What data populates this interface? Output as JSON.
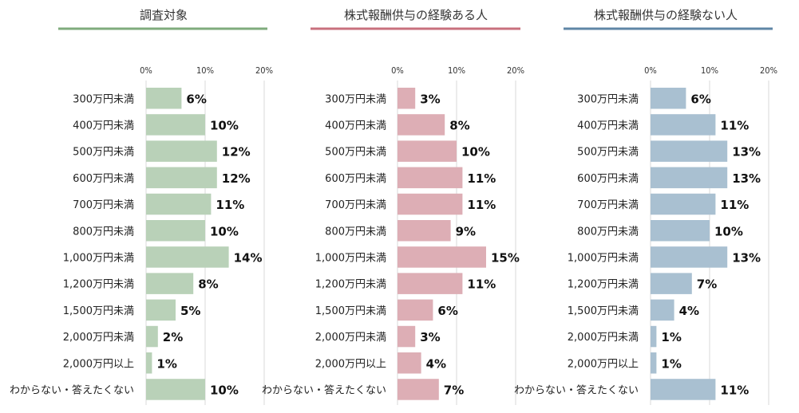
{
  "chart_data": [
    {
      "type": "bar",
      "orientation": "horizontal",
      "title": "調査対象",
      "color": "#b9d1b8",
      "underline_color": "#7fab7c",
      "categories": [
        "300万円未満",
        "400万円未満",
        "500万円未満",
        "600万円未満",
        "700万円未満",
        "800万円未満",
        "1,000万円未満",
        "1,200万円未満",
        "1,500万円未満",
        "2,000万円未満",
        "2,000万円以上",
        "わからない・答えたくない"
      ],
      "values": [
        6,
        10,
        12,
        12,
        11,
        10,
        14,
        8,
        5,
        2,
        1,
        10
      ],
      "value_labels": [
        "6%",
        "10%",
        "12%",
        "12%",
        "11%",
        "10%",
        "14%",
        "8%",
        "5%",
        "2%",
        "1%",
        "10%"
      ],
      "xlim": [
        0,
        20
      ],
      "xticks": [
        "0%",
        "10%",
        "20%"
      ],
      "grid": true
    },
    {
      "type": "bar",
      "orientation": "horizontal",
      "title": "株式報酬供与の経験ある人",
      "color": "#ddaeb5",
      "underline_color": "#c8707d",
      "categories": [
        "300万円未満",
        "400万円未満",
        "500万円未満",
        "600万円未満",
        "700万円未満",
        "800万円未満",
        "1,000万円未満",
        "1,200万円未満",
        "1,500万円未満",
        "2,000万円未満",
        "2,000万円以上",
        "わからない・答えたくない"
      ],
      "values": [
        3,
        8,
        10,
        11,
        11,
        9,
        15,
        11,
        6,
        3,
        4,
        7
      ],
      "value_labels": [
        "3%",
        "8%",
        "10%",
        "11%",
        "11%",
        "9%",
        "15%",
        "11%",
        "6%",
        "3%",
        "4%",
        "7%"
      ],
      "xlim": [
        0,
        20
      ],
      "xticks": [
        "0%",
        "10%",
        "20%"
      ],
      "grid": true
    },
    {
      "type": "bar",
      "orientation": "horizontal",
      "title": "株式報酬供与の経験ない人",
      "color": "#a9c0d1",
      "underline_color": "#5f86a6",
      "categories": [
        "300万円未満",
        "400万円未満",
        "500万円未満",
        "600万円未満",
        "700万円未満",
        "800万円未満",
        "1,000万円未満",
        "1,200万円未満",
        "1,500万円未満",
        "2,000万円未満",
        "2,000万円以上",
        "わからない・答えたくない"
      ],
      "values": [
        6,
        11,
        13,
        13,
        11,
        10,
        13,
        7,
        4,
        1,
        1,
        11
      ],
      "value_labels": [
        "6%",
        "11%",
        "13%",
        "13%",
        "11%",
        "10%",
        "13%",
        "7%",
        "4%",
        "1%",
        "1%",
        "11%"
      ],
      "xlim": [
        0,
        20
      ],
      "xticks": [
        "0%",
        "10%",
        "20%"
      ],
      "grid": true
    }
  ]
}
